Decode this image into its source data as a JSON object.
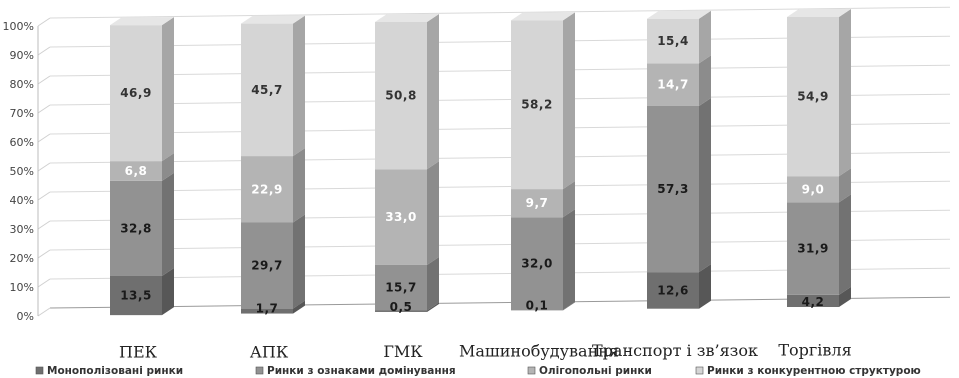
{
  "chart_data": {
    "type": "bar",
    "stacked": true,
    "percent": true,
    "categories": [
      "ПЕК",
      "АПК",
      "ГМК",
      "Машинобудування",
      "Транспорт і зв’язок",
      "Торгівля"
    ],
    "series": [
      {
        "name": "Монополізовані ринки",
        "values": [
          13.5,
          1.7,
          0.5,
          0.1,
          12.6,
          4.2
        ],
        "color": "#6f6f6f",
        "label_color": "#1a1a1a"
      },
      {
        "name": "Ринки з ознаками домінування",
        "values": [
          32.8,
          29.7,
          15.7,
          32.0,
          57.3,
          31.9
        ],
        "color": "#929292",
        "label_color": "#1a1a1a"
      },
      {
        "name": "Олігопольні ринки",
        "values": [
          6.8,
          22.9,
          33.0,
          9.7,
          14.7,
          9.0
        ],
        "color": "#b4b4b4",
        "label_color": "#ffffff"
      },
      {
        "name": "Ринки з конкурентною структурою",
        "values": [
          46.9,
          45.7,
          50.8,
          58.2,
          15.4,
          54.9
        ],
        "color": "#d5d5d5",
        "label_color": "#333333"
      }
    ],
    "data_labels": [
      [
        "13,5",
        "1,7",
        "0,5",
        "0,1",
        "12,6",
        "4,2"
      ],
      [
        "32,8",
        "29,7",
        "15,7",
        "32,0",
        "57,3",
        "31,9"
      ],
      [
        "6,8",
        "22,9",
        "33,0",
        "9,7",
        "14,7",
        "9,0"
      ],
      [
        "46,9",
        "45,7",
        "50,8",
        "58,2",
        "15,4",
        "54,9"
      ]
    ],
    "ylim": [
      0,
      100
    ],
    "yticks": [
      "0%",
      "10%",
      "20%",
      "30%",
      "40%",
      "50%",
      "60%",
      "70%",
      "80%",
      "90%",
      "100%"
    ],
    "grid": true,
    "legend_position": "bottom"
  }
}
